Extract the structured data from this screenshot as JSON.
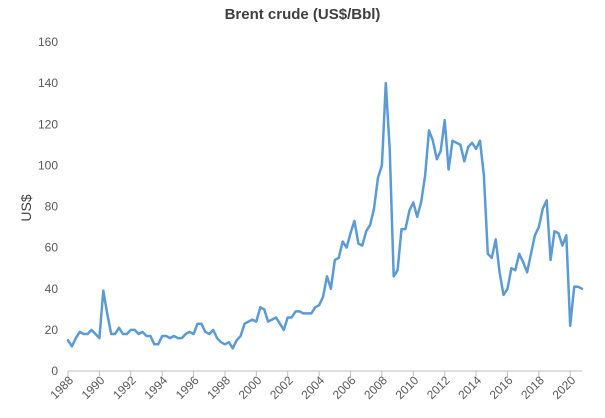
{
  "chart_data": {
    "type": "line",
    "title": "Brent crude (US$/Bbl)",
    "xlabel": "",
    "ylabel": "US$",
    "ylim": [
      0,
      160
    ],
    "yticks": [
      0,
      20,
      40,
      60,
      80,
      100,
      120,
      140,
      160
    ],
    "xlim": [
      1988,
      2020.75
    ],
    "xticks": [
      "1988",
      "1990",
      "1992",
      "1994",
      "1996",
      "1998",
      "2000",
      "2002",
      "2004",
      "2006",
      "2008",
      "2010",
      "2012",
      "2014",
      "2016",
      "2018",
      "2020"
    ],
    "grid": false,
    "legend": "none",
    "line_color": "#5B9BD5",
    "series": [
      {
        "x": [
          1988.0,
          1988.25,
          1988.5,
          1988.75,
          1989.0,
          1989.25,
          1989.5,
          1989.75,
          1990.0,
          1990.25,
          1990.5,
          1990.75,
          1991.0,
          1991.25,
          1991.5,
          1991.75,
          1992.0,
          1992.25,
          1992.5,
          1992.75,
          1993.0,
          1993.25,
          1993.5,
          1993.75,
          1994.0,
          1994.25,
          1994.5,
          1994.75,
          1995.0,
          1995.25,
          1995.5,
          1995.75,
          1996.0,
          1996.25,
          1996.5,
          1996.75,
          1997.0,
          1997.25,
          1997.5,
          1997.75,
          1998.0,
          1998.25,
          1998.5,
          1998.75,
          1999.0,
          1999.25,
          1999.5,
          1999.75,
          2000.0,
          2000.25,
          2000.5,
          2000.75,
          2001.0,
          2001.25,
          2001.5,
          2001.75,
          2002.0,
          2002.25,
          2002.5,
          2002.75,
          2003.0,
          2003.25,
          2003.5,
          2003.75,
          2004.0,
          2004.25,
          2004.5,
          2004.75,
          2005.0,
          2005.25,
          2005.5,
          2005.75,
          2006.0,
          2006.25,
          2006.5,
          2006.75,
          2007.0,
          2007.25,
          2007.5,
          2007.75,
          2008.0,
          2008.25,
          2008.5,
          2008.75,
          2009.0,
          2009.25,
          2009.5,
          2009.75,
          2010.0,
          2010.25,
          2010.5,
          2010.75,
          2011.0,
          2011.25,
          2011.5,
          2011.75,
          2012.0,
          2012.25,
          2012.5,
          2012.75,
          2013.0,
          2013.25,
          2013.5,
          2013.75,
          2014.0,
          2014.25,
          2014.5,
          2014.75,
          2015.0,
          2015.25,
          2015.5,
          2015.75,
          2016.0,
          2016.25,
          2016.5,
          2016.75,
          2017.0,
          2017.25,
          2017.5,
          2017.75,
          2018.0,
          2018.25,
          2018.5,
          2018.75,
          2019.0,
          2019.25,
          2019.5,
          2019.75,
          2020.0,
          2020.25,
          2020.5,
          2020.75
        ],
        "values": [
          15,
          12,
          16,
          19,
          18,
          18,
          20,
          18,
          16,
          39,
          28,
          18,
          18,
          21,
          18,
          18,
          20,
          20,
          18,
          19,
          17,
          17,
          13,
          13,
          17,
          17,
          16,
          17,
          16,
          16,
          18,
          19,
          18,
          23,
          23,
          19,
          18,
          20,
          16,
          14,
          13,
          14,
          11,
          15,
          17,
          23,
          24,
          25,
          24,
          31,
          30,
          24,
          25,
          26,
          23,
          20,
          26,
          26,
          29,
          29,
          28,
          28,
          28,
          31,
          32,
          36,
          46,
          40,
          54,
          55,
          63,
          60,
          67,
          73,
          62,
          61,
          68,
          71,
          79,
          94,
          100,
          140,
          108,
          46,
          49,
          69,
          69,
          78,
          82,
          75,
          82,
          95,
          117,
          112,
          103,
          107,
          122,
          98,
          112,
          111,
          110,
          102,
          109,
          111,
          108,
          112,
          95,
          57,
          55,
          64,
          48,
          37,
          40,
          50,
          49,
          57,
          53,
          48,
          57,
          66,
          70,
          79,
          83,
          54,
          68,
          67,
          61,
          66,
          22,
          41,
          41,
          40
        ]
      }
    ]
  }
}
